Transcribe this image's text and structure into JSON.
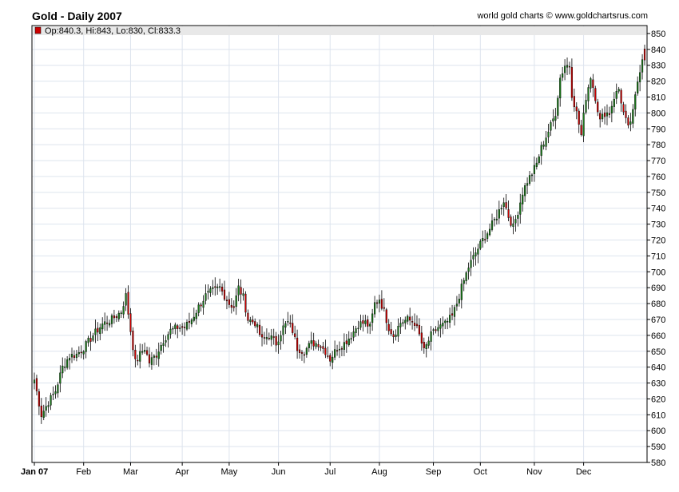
{
  "header": {
    "title": "Gold - Daily 2007",
    "source": "world gold charts © www.goldchartsrus.com"
  },
  "ohlc_label": "Op:840.3, Hi:843, Lo:830, Cl:833.3",
  "colors": {
    "up": "#1a7a1a",
    "down": "#cc0000",
    "grid": "#dde4ee",
    "frame": "#000000",
    "legend_bar": "#e8e8e8"
  },
  "chart_data": {
    "type": "candlestick",
    "title": "Gold - Daily 2007",
    "xlabel": "",
    "ylabel": "",
    "ylim": [
      580,
      855
    ],
    "y_ticks": [
      580,
      590,
      600,
      610,
      620,
      630,
      640,
      650,
      660,
      670,
      680,
      690,
      700,
      710,
      720,
      730,
      740,
      750,
      760,
      770,
      780,
      790,
      800,
      810,
      820,
      830,
      840,
      850
    ],
    "x_ticks": [
      {
        "label": "Jan 07",
        "day": 0,
        "bold": true
      },
      {
        "label": "Feb",
        "day": 21
      },
      {
        "label": "Mar",
        "day": 41
      },
      {
        "label": "Apr",
        "day": 63
      },
      {
        "label": "May",
        "day": 83
      },
      {
        "label": "Jun",
        "day": 104
      },
      {
        "label": "Jul",
        "day": 126
      },
      {
        "label": "Aug",
        "day": 147
      },
      {
        "label": "Sep",
        "day": 170
      },
      {
        "label": "Oct",
        "day": 190
      },
      {
        "label": "Nov",
        "day": 213
      },
      {
        "label": "Dec",
        "day": 234
      }
    ],
    "total_days": 249,
    "close_path": [
      [
        0,
        632
      ],
      [
        3,
        610
      ],
      [
        6,
        618
      ],
      [
        9,
        625
      ],
      [
        12,
        640
      ],
      [
        15,
        647
      ],
      [
        18,
        648
      ],
      [
        21,
        652
      ],
      [
        25,
        660
      ],
      [
        29,
        667
      ],
      [
        33,
        670
      ],
      [
        37,
        675
      ],
      [
        39,
        685
      ],
      [
        41,
        663
      ],
      [
        43,
        643
      ],
      [
        45,
        648
      ],
      [
        47,
        652
      ],
      [
        49,
        643
      ],
      [
        52,
        648
      ],
      [
        55,
        657
      ],
      [
        58,
        663
      ],
      [
        61,
        665
      ],
      [
        64,
        665
      ],
      [
        67,
        670
      ],
      [
        70,
        678
      ],
      [
        73,
        685
      ],
      [
        76,
        688
      ],
      [
        79,
        690
      ],
      [
        81,
        685
      ],
      [
        83,
        680
      ],
      [
        85,
        678
      ],
      [
        87,
        690
      ],
      [
        89,
        684
      ],
      [
        91,
        670
      ],
      [
        94,
        668
      ],
      [
        97,
        657
      ],
      [
        100,
        660
      ],
      [
        103,
        655
      ],
      [
        106,
        665
      ],
      [
        108,
        668
      ],
      [
        110,
        663
      ],
      [
        112,
        652
      ],
      [
        115,
        650
      ],
      [
        118,
        655
      ],
      [
        121,
        655
      ],
      [
        124,
        650
      ],
      [
        126,
        645
      ],
      [
        129,
        652
      ],
      [
        132,
        655
      ],
      [
        135,
        660
      ],
      [
        138,
        667
      ],
      [
        141,
        668
      ],
      [
        143,
        665
      ],
      [
        145,
        680
      ],
      [
        147,
        683
      ],
      [
        149,
        675
      ],
      [
        151,
        665
      ],
      [
        153,
        660
      ],
      [
        156,
        668
      ],
      [
        159,
        670
      ],
      [
        162,
        668
      ],
      [
        164,
        660
      ],
      [
        166,
        650
      ],
      [
        169,
        660
      ],
      [
        172,
        665
      ],
      [
        175,
        667
      ],
      [
        178,
        672
      ],
      [
        180,
        680
      ],
      [
        182,
        690
      ],
      [
        185,
        703
      ],
      [
        188,
        712
      ],
      [
        191,
        720
      ],
      [
        194,
        727
      ],
      [
        197,
        735
      ],
      [
        200,
        745
      ],
      [
        202,
        735
      ],
      [
        204,
        728
      ],
      [
        206,
        738
      ],
      [
        208,
        750
      ],
      [
        210,
        757
      ],
      [
        212,
        762
      ],
      [
        214,
        768
      ],
      [
        216,
        778
      ],
      [
        218,
        785
      ],
      [
        220,
        792
      ],
      [
        222,
        800
      ],
      [
        224,
        822
      ],
      [
        226,
        830
      ],
      [
        228,
        830
      ],
      [
        229,
        812
      ],
      [
        231,
        800
      ],
      [
        233,
        786
      ],
      [
        235,
        810
      ],
      [
        237,
        823
      ],
      [
        239,
        810
      ],
      [
        241,
        795
      ],
      [
        243,
        800
      ],
      [
        245,
        800
      ],
      [
        247,
        810
      ],
      [
        249,
        815
      ],
      [
        251,
        800
      ],
      [
        253,
        790
      ],
      [
        255,
        800
      ],
      [
        257,
        820
      ],
      [
        259,
        835
      ],
      [
        260,
        833
      ]
    ],
    "last_bar": {
      "open": 840.3,
      "high": 843,
      "low": 830,
      "close": 833.3
    }
  }
}
